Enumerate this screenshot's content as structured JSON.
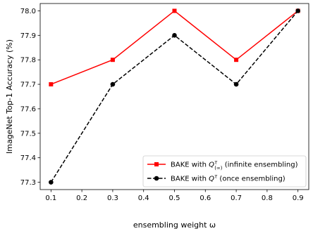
{
  "chart_data": {
    "type": "line",
    "xlabel": "ensembling weight ω",
    "ylabel": "ImageNet Top-1 Accuracy (%)",
    "xlim": [
      0.065,
      0.935
    ],
    "ylim": [
      77.27,
      78.03
    ],
    "x_ticks": [
      0.1,
      0.2,
      0.3,
      0.4,
      0.5,
      0.6,
      0.7,
      0.8,
      0.9
    ],
    "x_tick_labels": [
      "0.1",
      "0.2",
      "0.3",
      "0.4",
      "0.5",
      "0.6",
      "0.7",
      "0.8",
      "0.9"
    ],
    "y_ticks": [
      77.3,
      77.4,
      77.5,
      77.6,
      77.7,
      77.8,
      77.9,
      78.0
    ],
    "y_tick_labels": [
      "77.3",
      "77.4",
      "77.5",
      "77.6",
      "77.7",
      "77.8",
      "77.9",
      "78.0"
    ],
    "grid": false,
    "legend_position": "bottom-right",
    "series": [
      {
        "name": "BAKE with Q(∞)τ (infinite ensembling)",
        "legend_parts": {
          "prefix": "BAKE with ",
          "symbol": "Q",
          "sup": "τ",
          "sub": "(∞)",
          "suffix": " (infinite ensembling)"
        },
        "color": "#ff0000",
        "line_style": "solid",
        "marker": "square",
        "x": [
          0.1,
          0.3,
          0.5,
          0.7,
          0.9
        ],
        "y": [
          77.7,
          77.8,
          78.0,
          77.8,
          78.0
        ]
      },
      {
        "name": "BAKE with Qτ (once ensembling)",
        "legend_parts": {
          "prefix": "BAKE with ",
          "symbol": "Q",
          "sup": "τ",
          "sub": "",
          "suffix": " (once ensembling)"
        },
        "color": "#000000",
        "line_style": "dashed",
        "marker": "circle",
        "x": [
          0.1,
          0.3,
          0.5,
          0.7,
          0.9
        ],
        "y": [
          77.3,
          77.7,
          77.9,
          77.7,
          78.0
        ]
      }
    ]
  }
}
